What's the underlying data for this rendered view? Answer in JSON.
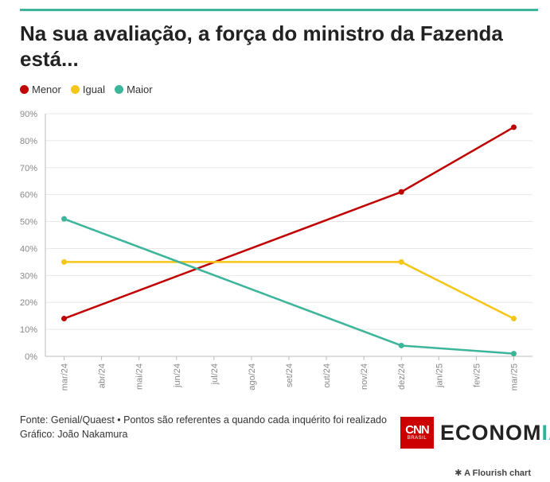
{
  "header": {
    "title": "Na sua avaliação, a força do ministro da Fazenda está..."
  },
  "colors": {
    "rule": "#3db59a",
    "grid": "#e8e8e8",
    "axis": "#999999"
  },
  "chart_data": {
    "type": "line",
    "title": "Na sua avaliação, a força do ministro da Fazenda está...",
    "xlabel": "",
    "ylabel": "",
    "categories": [
      "mar/24",
      "abr/24",
      "mai/24",
      "jun/24",
      "jul/24",
      "ago/24",
      "set/24",
      "out/24",
      "nov/24",
      "dez/24",
      "jan/25",
      "fev/25",
      "mar/25"
    ],
    "ylim": [
      0,
      90
    ],
    "yticks": [
      0,
      10,
      20,
      30,
      40,
      50,
      60,
      70,
      80,
      90
    ],
    "ytick_labels": [
      "0%",
      "10%",
      "20%",
      "30%",
      "40%",
      "50%",
      "60%",
      "70%",
      "80%",
      "90%"
    ],
    "grid": true,
    "legend": "top-left",
    "series": [
      {
        "name": "Menor",
        "color": "#c00000",
        "points": [
          {
            "x": "mar/24",
            "y": 14
          },
          {
            "x": "dez/24",
            "y": 61
          },
          {
            "x": "mar/25",
            "y": 85
          }
        ]
      },
      {
        "name": "Igual",
        "color": "#f5c518",
        "points": [
          {
            "x": "mar/24",
            "y": 35
          },
          {
            "x": "dez/24",
            "y": 35
          },
          {
            "x": "mar/25",
            "y": 14
          }
        ]
      },
      {
        "name": "Maior",
        "color": "#3db59a",
        "points": [
          {
            "x": "mar/24",
            "y": 51
          },
          {
            "x": "dez/24",
            "y": 4
          },
          {
            "x": "mar/25",
            "y": 1
          }
        ]
      }
    ]
  },
  "footer": {
    "source": "Fonte: Genial/Quaest • Pontos são referentes a quando cada inquérito foi realizado",
    "credit": "Gráfico: João Nakamura"
  },
  "logo": {
    "cnn": "CNN",
    "brasil": "BRASIL",
    "economia_main": "ECONOM",
    "economia_accent": "IA"
  },
  "attribution": "A Flourish chart"
}
